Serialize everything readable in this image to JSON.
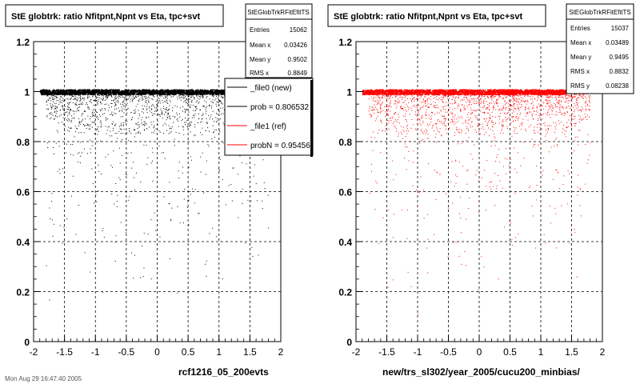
{
  "colors": {
    "background": "#ffffff",
    "frame": "#000000",
    "grid": "#000000",
    "new_series": "#000000",
    "ref_series": "#ff0000"
  },
  "footer": {
    "timestamp": "Mon Aug 29 16:47:40 2005"
  },
  "panels": [
    {
      "title": "StE globtrk: ratio Nfitpnt,Npnt vs Eta, tpc+svt",
      "xlabel": "rcf1216_05_200evts",
      "stats": {
        "name": "StEGlobTrkRFitEfitTS",
        "rows": [
          {
            "label": "Entries",
            "value": "15062"
          },
          {
            "label": "Mean x",
            "value": "0.03426"
          },
          {
            "label": "Mean y",
            "value": "0.9502"
          },
          {
            "label": "RMS x",
            "value": "0.8849"
          }
        ]
      },
      "legend": {
        "entries": [
          {
            "label": "_file0 (new)",
            "color": "#000000"
          },
          {
            "label": "prob = 0.806532",
            "color": "#000000"
          },
          {
            "label": "_file1 (ref)",
            "color": "#ff0000"
          },
          {
            "label": "probN = 0.954563",
            "color": "#ff0000"
          }
        ]
      }
    },
    {
      "title": "StE globtrk: ratio Nfitpnt,Npnt vs Eta, tpc+svt",
      "xlabel": "new/trs_sl302/year_2005/cucu200_minbias/",
      "stats": {
        "name": "StEGlobTrkRFitEfitTS",
        "rows": [
          {
            "label": "Entries",
            "value": "15037"
          },
          {
            "label": "Mean x",
            "value": "0.03489"
          },
          {
            "label": "Mean y",
            "value": "0.9495"
          },
          {
            "label": "RMS x",
            "value": "0.8832"
          },
          {
            "label": "RMS y",
            "value": "0.08238"
          }
        ]
      }
    }
  ],
  "chart_data": [
    {
      "type": "scatter",
      "title": "StE globtrk: ratio Nfitpnt,Npnt vs Eta, tpc+svt",
      "xlabel": "rcf1216_05_200evts",
      "ylabel": "",
      "xlim": [
        -2,
        2
      ],
      "ylim": [
        0,
        1.2
      ],
      "xticks": [
        -2,
        -1.5,
        -1,
        -0.5,
        0,
        0.5,
        1,
        1.5,
        2
      ],
      "yticks": [
        0,
        0.2,
        0.4,
        0.6,
        0.8,
        1,
        1.2
      ],
      "grid": true,
      "legend": "top-right",
      "series": [
        {
          "name": "_file0 (new)",
          "color": "#000000",
          "entries": 15062,
          "mean_x": 0.03426,
          "mean_y": 0.9502,
          "rms_x": 0.8849,
          "eta_range": [
            -1.8,
            1.8
          ],
          "band_y": 1.0,
          "lower_density_y_range": [
            0.85,
            1.0
          ]
        }
      ]
    },
    {
      "type": "scatter",
      "title": "StE globtrk: ratio Nfitpnt,Npnt vs Eta, tpc+svt",
      "xlabel": "new/trs_sl302/year_2005/cucu200_minbias/",
      "ylabel": "",
      "xlim": [
        -2,
        2
      ],
      "ylim": [
        0,
        1.2
      ],
      "xticks": [
        -2,
        -1.5,
        -1,
        -0.5,
        0,
        0.5,
        1,
        1.5,
        2
      ],
      "yticks": [
        0,
        0.2,
        0.4,
        0.6,
        0.8,
        1,
        1.2
      ],
      "grid": true,
      "series": [
        {
          "name": "_file1 (ref)",
          "color": "#ff0000",
          "entries": 15037,
          "mean_x": 0.03489,
          "mean_y": 0.9495,
          "rms_x": 0.8832,
          "rms_y": 0.08238,
          "eta_range": [
            -1.8,
            1.8
          ],
          "band_y": 1.0,
          "lower_density_y_range": [
            0.85,
            1.0
          ]
        }
      ]
    }
  ]
}
